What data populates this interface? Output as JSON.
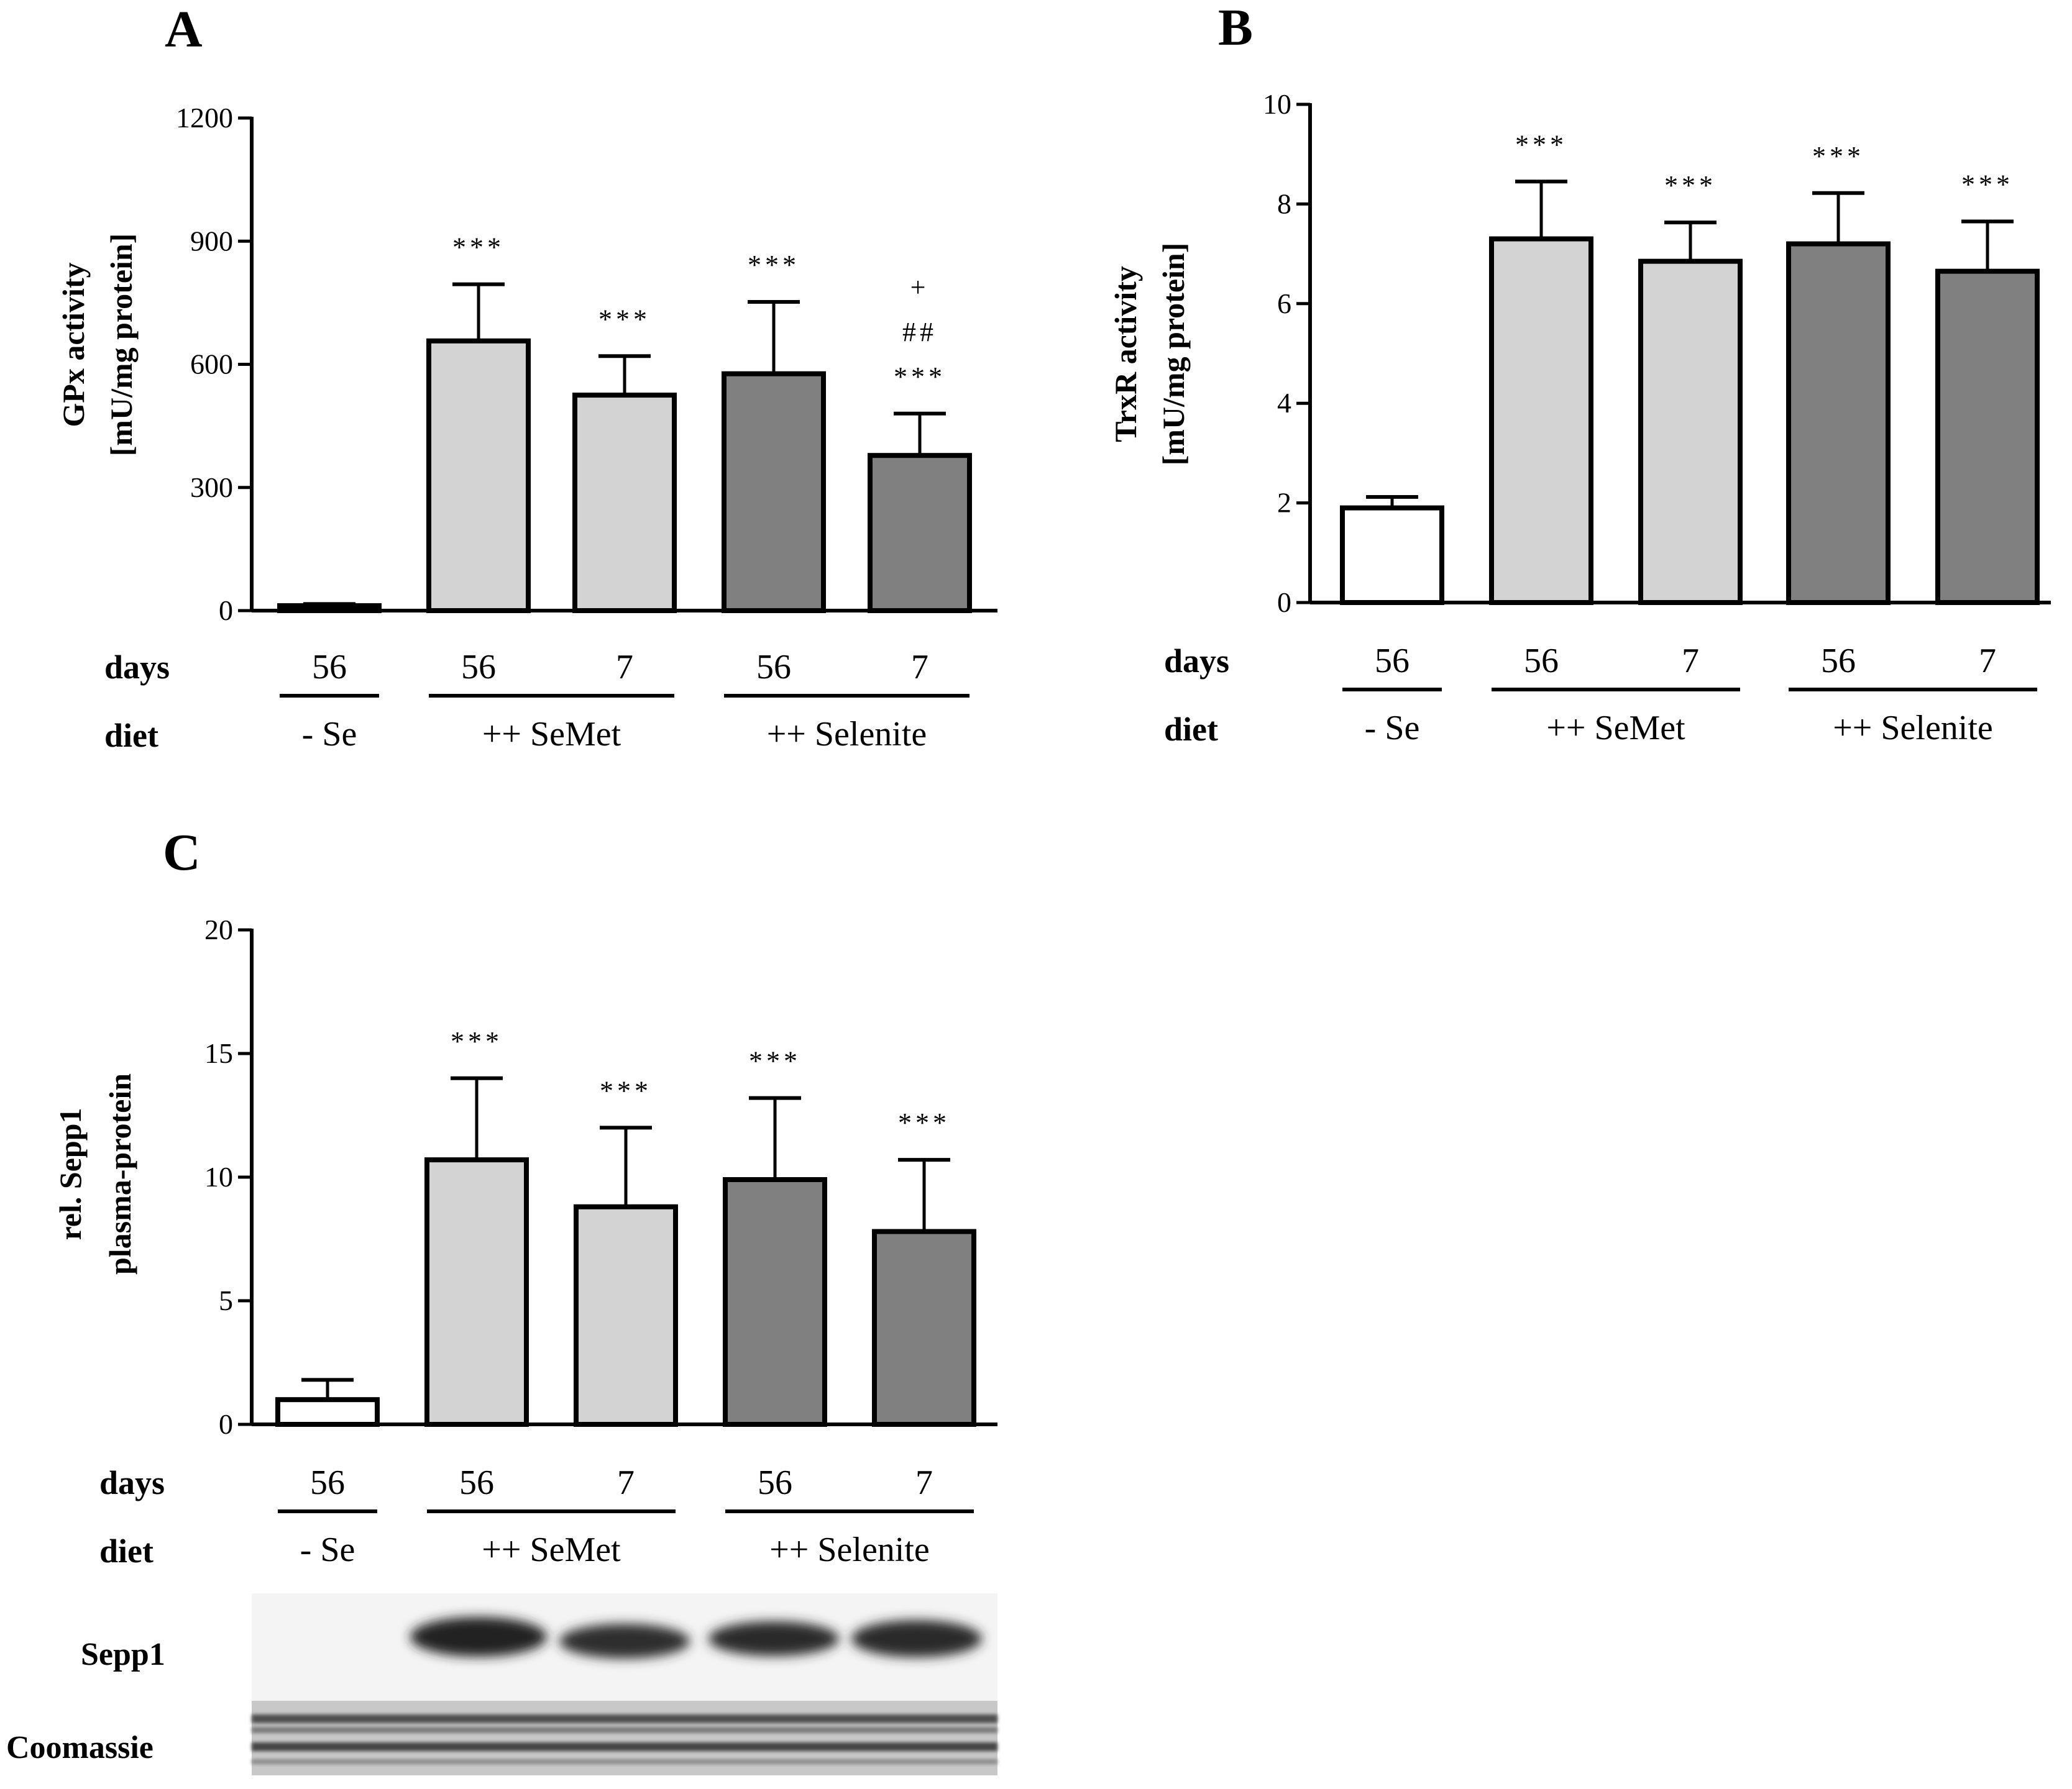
{
  "panels": {
    "A": {
      "letter": "A",
      "ylabel_line1": "GPx activity",
      "ylabel_line2": "[mU/mg protein]"
    },
    "B": {
      "letter": "B",
      "ylabel_line1": "TrxR activity",
      "ylabel_line2": "[mU/mg protein]"
    },
    "C": {
      "letter": "C",
      "ylabel_line1": "rel. Sepp1",
      "ylabel_line2": "plasma-protein"
    }
  },
  "row_labels": {
    "days": "days",
    "diet": "diet"
  },
  "day_labels": [
    "56",
    "56",
    "7",
    "56",
    "7"
  ],
  "group_labels": [
    "- Se",
    "++ SeMet",
    "++ Selenite"
  ],
  "blot_labels": {
    "sepp1": "Sepp1",
    "coomassie": "Coomassie"
  },
  "colors": {
    "white_bar": "#ffffff",
    "semet_bar": "#d3d3d3",
    "selenite_bar": "#808080",
    "axis": "#000000"
  },
  "chart_data": [
    {
      "panel": "A",
      "type": "bar",
      "categories": [
        "56",
        "56",
        "7",
        "56",
        "7"
      ],
      "values": [
        12,
        657,
        525,
        577,
        378
      ],
      "errors": [
        4,
        138,
        95,
        175,
        102
      ],
      "annotations": [
        [],
        [
          "***"
        ],
        [
          "***"
        ],
        [
          "***"
        ],
        [
          "+",
          "##",
          "***"
        ]
      ],
      "ylabel": "GPx activity [mU/mg protein]",
      "ylim": [
        0,
        1200
      ],
      "yticks": [
        0,
        300,
        600,
        900,
        1200
      ],
      "legend": "none"
    },
    {
      "panel": "B",
      "type": "bar",
      "categories": [
        "56",
        "56",
        "7",
        "56",
        "7"
      ],
      "values": [
        1.9,
        7.3,
        6.85,
        7.2,
        6.65
      ],
      "errors": [
        0.22,
        1.15,
        0.78,
        1.02,
        1.0
      ],
      "annotations": [
        [],
        [
          "***"
        ],
        [
          "***"
        ],
        [
          "***"
        ],
        [
          "***"
        ]
      ],
      "ylabel": "TrxR activity [mU/mg protein]",
      "ylim": [
        0,
        10
      ],
      "yticks": [
        0,
        2,
        4,
        6,
        8,
        10
      ],
      "legend": "none"
    },
    {
      "panel": "C",
      "type": "bar",
      "categories": [
        "56",
        "56",
        "7",
        "56",
        "7"
      ],
      "values": [
        1.0,
        10.7,
        8.8,
        9.9,
        7.8
      ],
      "errors": [
        0.8,
        3.3,
        3.2,
        3.3,
        2.9
      ],
      "annotations": [
        [],
        [
          "***"
        ],
        [
          "***"
        ],
        [
          "***"
        ],
        [
          "***"
        ]
      ],
      "ylabel": "rel. Sepp1 plasma-protein",
      "ylim": [
        0,
        20
      ],
      "yticks": [
        0,
        5,
        10,
        15,
        20
      ],
      "legend": "none"
    }
  ]
}
